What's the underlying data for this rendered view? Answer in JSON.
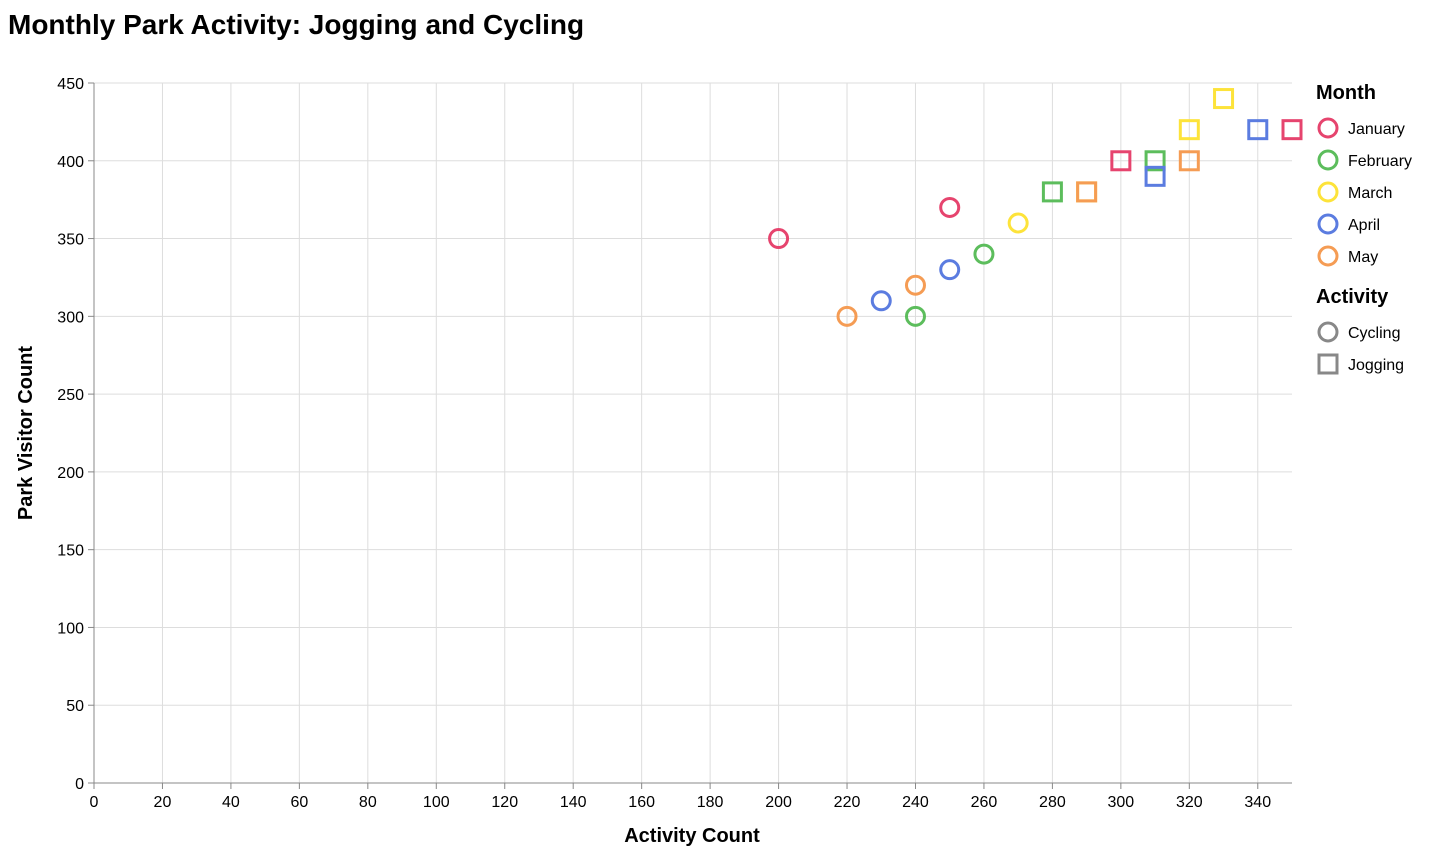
{
  "chart_data": {
    "type": "scatter",
    "title": "Monthly Park Activity: Jogging and Cycling",
    "xlabel": "Activity Count",
    "ylabel": "Park Visitor Count",
    "xlim": [
      0,
      350
    ],
    "ylim": [
      0,
      450
    ],
    "x_ticks": [
      0,
      20,
      40,
      60,
      80,
      100,
      120,
      140,
      160,
      180,
      200,
      220,
      240,
      260,
      280,
      300,
      320,
      340
    ],
    "y_ticks": [
      0,
      50,
      100,
      150,
      200,
      250,
      300,
      350,
      400,
      450
    ],
    "grid": true,
    "legend_position": "right",
    "month_legend_title": "Month",
    "activity_legend_title": "Activity",
    "months": [
      {
        "name": "January",
        "color": "#e6446e"
      },
      {
        "name": "February",
        "color": "#5cbd5c"
      },
      {
        "name": "March",
        "color": "#fde33a"
      },
      {
        "name": "April",
        "color": "#5b7ce0"
      },
      {
        "name": "May",
        "color": "#f59c54"
      }
    ],
    "activities": [
      {
        "name": "Cycling",
        "shape": "circle"
      },
      {
        "name": "Jogging",
        "shape": "square"
      }
    ],
    "points": [
      {
        "month": "January",
        "activity": "Cycling",
        "x": 200,
        "y": 350
      },
      {
        "month": "January",
        "activity": "Cycling",
        "x": 250,
        "y": 370
      },
      {
        "month": "January",
        "activity": "Jogging",
        "x": 300,
        "y": 400
      },
      {
        "month": "January",
        "activity": "Jogging",
        "x": 350,
        "y": 420
      },
      {
        "month": "February",
        "activity": "Cycling",
        "x": 240,
        "y": 300
      },
      {
        "month": "February",
        "activity": "Cycling",
        "x": 260,
        "y": 340
      },
      {
        "month": "February",
        "activity": "Jogging",
        "x": 280,
        "y": 380
      },
      {
        "month": "February",
        "activity": "Jogging",
        "x": 310,
        "y": 400
      },
      {
        "month": "March",
        "activity": "Cycling",
        "x": 270,
        "y": 360
      },
      {
        "month": "March",
        "activity": "Jogging",
        "x": 290,
        "y": 380
      },
      {
        "month": "March",
        "activity": "Jogging",
        "x": 320,
        "y": 420
      },
      {
        "month": "March",
        "activity": "Jogging",
        "x": 330,
        "y": 440
      },
      {
        "month": "April",
        "activity": "Cycling",
        "x": 230,
        "y": 310
      },
      {
        "month": "April",
        "activity": "Cycling",
        "x": 250,
        "y": 330
      },
      {
        "month": "April",
        "activity": "Jogging",
        "x": 310,
        "y": 390
      },
      {
        "month": "April",
        "activity": "Jogging",
        "x": 340,
        "y": 420
      },
      {
        "month": "May",
        "activity": "Cycling",
        "x": 220,
        "y": 300
      },
      {
        "month": "May",
        "activity": "Cycling",
        "x": 240,
        "y": 320
      },
      {
        "month": "May",
        "activity": "Jogging",
        "x": 290,
        "y": 380
      },
      {
        "month": "May",
        "activity": "Jogging",
        "x": 320,
        "y": 400
      }
    ]
  }
}
